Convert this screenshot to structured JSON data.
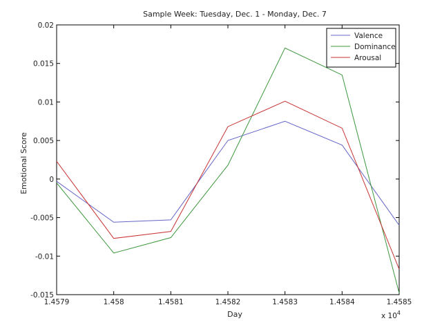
{
  "chart_data": {
    "type": "line",
    "title": "Sample Week: Tuesday, Dec. 1 - Monday, Dec. 7",
    "xlabel": "Day",
    "ylabel": "Emotional Score",
    "x_multiplier_label": "x 10",
    "x_multiplier_exponent": "4",
    "x": [
      14579,
      14580,
      14581,
      14582,
      14583,
      14584,
      14585
    ],
    "xlim": [
      14579,
      14585
    ],
    "ylim": [
      -0.015,
      0.02
    ],
    "x_ticks": [
      14579,
      14580,
      14581,
      14582,
      14583,
      14584,
      14585
    ],
    "x_tick_labels": [
      "1.4579",
      "1.458",
      "1.4581",
      "1.4582",
      "1.4583",
      "1.4584",
      "1.4585"
    ],
    "y_ticks": [
      -0.015,
      -0.01,
      -0.005,
      0,
      0.005,
      0.01,
      0.015,
      0.02
    ],
    "y_tick_labels": [
      "-0.015",
      "-0.01",
      "-0.005",
      "0",
      "0.005",
      "0.01",
      "0.015",
      "0.02"
    ],
    "grid": false,
    "legend_position": "top-right",
    "series": [
      {
        "name": "Valence",
        "color": "#6464c8",
        "values": [
          -0.0003,
          -0.0056,
          -0.0053,
          0.005,
          0.0075,
          0.0044,
          -0.006
        ]
      },
      {
        "name": "Dominance",
        "color": "#3c963c",
        "values": [
          -0.0005,
          -0.0096,
          -0.0076,
          0.0018,
          0.017,
          0.0135,
          -0.0148
        ]
      },
      {
        "name": "Arousal",
        "color": "#c83232",
        "values": [
          0.0023,
          -0.0077,
          -0.0068,
          0.0068,
          0.0101,
          0.0066,
          -0.0117
        ]
      }
    ]
  }
}
